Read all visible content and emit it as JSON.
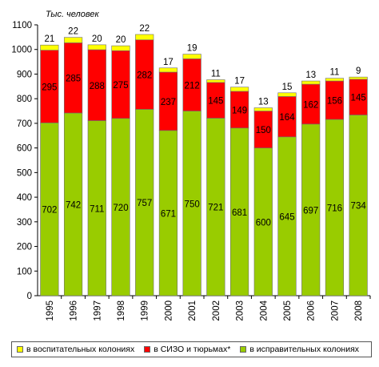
{
  "chart_data": {
    "type": "bar",
    "stacked": true,
    "unit_label": "Тыс. человек",
    "categories": [
      "1995",
      "1996",
      "1997",
      "1998",
      "1999",
      "2000",
      "2001",
      "2002",
      "2003",
      "2004",
      "2005",
      "2006",
      "2007",
      "2008"
    ],
    "series": [
      {
        "name": "в исправительных колониях",
        "color": "#99cc00",
        "values": [
          702,
          742,
          711,
          720,
          757,
          671,
          750,
          721,
          681,
          600,
          645,
          697,
          716,
          734
        ]
      },
      {
        "name": "в СИЗО и тюрьмах*",
        "color": "#ff0000",
        "values": [
          295,
          285,
          288,
          275,
          282,
          237,
          212,
          145,
          149,
          150,
          164,
          162,
          156,
          145
        ]
      },
      {
        "name": "в воспитательных колониях",
        "color": "#ffff00",
        "values": [
          21,
          22,
          20,
          20,
          22,
          17,
          19,
          11,
          17,
          13,
          15,
          13,
          11,
          9
        ]
      }
    ],
    "ylim": [
      0,
      1100
    ],
    "yticks": [
      0,
      100,
      200,
      300,
      400,
      500,
      600,
      700,
      800,
      900,
      1000,
      1100
    ],
    "grid": false,
    "legend_position": "bottom",
    "legend_order": [
      "в воспитательных колониях",
      "в СИЗО и тюрьмах*",
      "в исправительных колониях"
    ]
  }
}
